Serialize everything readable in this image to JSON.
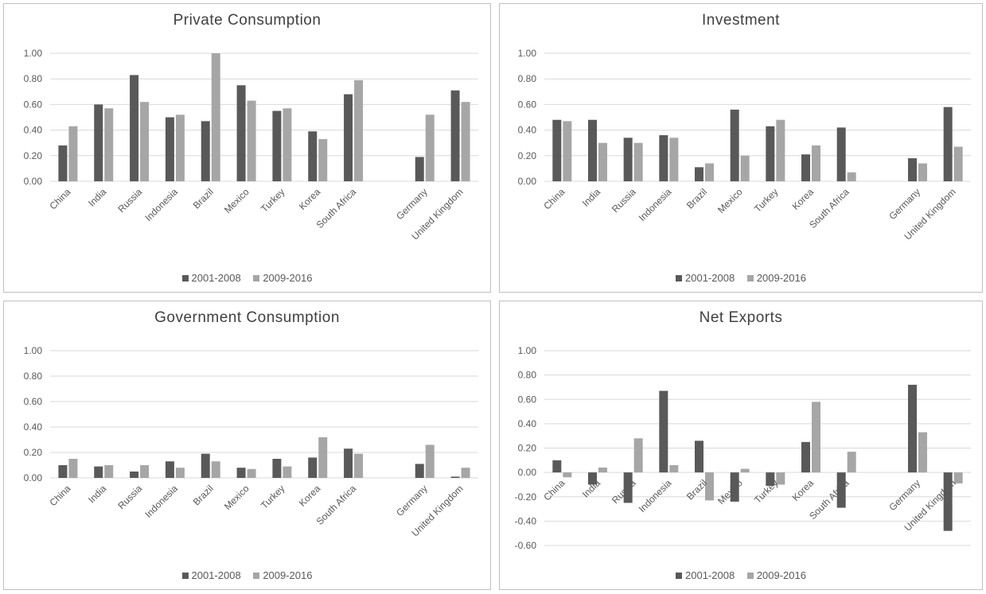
{
  "colors": {
    "s1": "#595959",
    "s2": "#a6a6a6",
    "grid": "#d9d9d9",
    "text": "#595959"
  },
  "chart_data": [
    {
      "type": "bar",
      "title": "Private Consumption",
      "categories": [
        "China",
        "India",
        "Russia",
        "Indonesia",
        "Brazil",
        "Mexico",
        "Turkey",
        "Korea",
        "South Africa",
        "",
        "Germany",
        "United Kingdom"
      ],
      "series": [
        {
          "name": "2001-2008",
          "values": [
            0.28,
            0.6,
            0.83,
            0.5,
            0.47,
            0.75,
            0.55,
            0.39,
            0.68,
            null,
            0.19,
            0.71
          ]
        },
        {
          "name": "2009-2016",
          "values": [
            0.43,
            0.57,
            0.62,
            0.52,
            1.0,
            0.63,
            0.57,
            0.33,
            0.79,
            null,
            0.52,
            0.62
          ]
        }
      ],
      "ylim": [
        0,
        1.0
      ],
      "yticks": [
        "0.00",
        "0.20",
        "0.40",
        "0.60",
        "0.80",
        "1.00"
      ],
      "legend": "bottom"
    },
    {
      "type": "bar",
      "title": "Investment",
      "categories": [
        "China",
        "India",
        "Russia",
        "Indonesia",
        "Brazil",
        "Mexico",
        "Turkey",
        "Korea",
        "South Africa",
        "",
        "Germany",
        "United Kingdom"
      ],
      "series": [
        {
          "name": "2001-2008",
          "values": [
            0.48,
            0.48,
            0.34,
            0.36,
            0.11,
            0.56,
            0.43,
            0.21,
            0.42,
            null,
            0.18,
            0.58
          ]
        },
        {
          "name": "2009-2016",
          "values": [
            0.47,
            0.3,
            0.3,
            0.34,
            0.14,
            0.2,
            0.48,
            0.28,
            0.07,
            null,
            0.14,
            0.27
          ]
        }
      ],
      "ylim": [
        0,
        1.0
      ],
      "yticks": [
        "0.00",
        "0.20",
        "0.40",
        "0.60",
        "0.80",
        "1.00"
      ],
      "legend": "bottom"
    },
    {
      "type": "bar",
      "title": "Government Consumption",
      "categories": [
        "China",
        "India",
        "Russia",
        "Indonesia",
        "Brazil",
        "Mexico",
        "Turkey",
        "Korea",
        "South Africa",
        "",
        "Germany",
        "United Kingdom"
      ],
      "series": [
        {
          "name": "2001-2008",
          "values": [
            0.1,
            0.09,
            0.05,
            0.13,
            0.19,
            0.08,
            0.15,
            0.16,
            0.23,
            null,
            0.11,
            0.01
          ]
        },
        {
          "name": "2009-2016",
          "values": [
            0.15,
            0.1,
            0.1,
            0.08,
            0.13,
            0.07,
            0.09,
            0.32,
            0.19,
            null,
            0.26,
            0.08
          ]
        }
      ],
      "ylim": [
        0,
        1.0
      ],
      "yticks": [
        "0.00",
        "0.20",
        "0.40",
        "0.60",
        "0.80",
        "1.00"
      ],
      "legend": "bottom"
    },
    {
      "type": "bar",
      "title": "Net Exports",
      "categories": [
        "China",
        "India",
        "Russia",
        "Indonesia",
        "Brazil",
        "Mexico",
        "Turkey",
        "Korea",
        "South Africa",
        "",
        "Germany",
        "United Kingdom"
      ],
      "series": [
        {
          "name": "2001-2008",
          "values": [
            0.1,
            -0.1,
            -0.25,
            0.67,
            0.26,
            -0.24,
            -0.11,
            0.25,
            -0.29,
            null,
            0.72,
            -0.48
          ]
        },
        {
          "name": "2009-2016",
          "values": [
            -0.04,
            0.04,
            0.28,
            0.06,
            -0.23,
            0.03,
            -0.1,
            0.58,
            0.17,
            null,
            0.33,
            -0.09
          ]
        }
      ],
      "ylim": [
        -0.6,
        1.0
      ],
      "yticks": [
        "-0.60",
        "-0.40",
        "-0.20",
        "0.00",
        "0.20",
        "0.40",
        "0.60",
        "0.80",
        "1.00"
      ],
      "legend": "bottom"
    }
  ]
}
